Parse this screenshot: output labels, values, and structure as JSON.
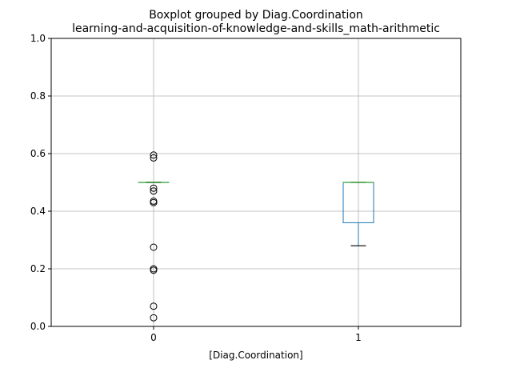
{
  "chart_data": {
    "type": "boxplot",
    "title_line1": "Boxplot grouped by Diag.Coordination",
    "title_line2": "learning-and-acquisition-of-knowledge-and-skills_math-arithmetic",
    "xlabel": "[Diag.Coordination]",
    "ylabel": "",
    "ylim": [
      0,
      1
    ],
    "yticks": [
      "0.0",
      "0.2",
      "0.4",
      "0.6",
      "0.8",
      "1.0"
    ],
    "ytick_values": [
      0,
      0.2,
      0.4,
      0.6,
      0.8,
      1.0
    ],
    "categories": [
      "0",
      "1"
    ],
    "grid": true,
    "boxes": [
      {
        "category": "0",
        "whislo": 0.5,
        "q1": 0.5,
        "median": 0.5,
        "q3": 0.5,
        "whishi": 0.5,
        "fliers": [
          0.595,
          0.585,
          0.48,
          0.47,
          0.435,
          0.43,
          0.275,
          0.2,
          0.195,
          0.07,
          0.03
        ]
      },
      {
        "category": "1",
        "whislo": 0.28,
        "q1": 0.36,
        "median": 0.5,
        "q3": 0.5,
        "whishi": 0.5,
        "fliers": []
      }
    ],
    "colors": {
      "box": "#1f77b4",
      "median": "#2ca02c",
      "whisker": "#000000",
      "grid": "#b0b0b0"
    }
  }
}
